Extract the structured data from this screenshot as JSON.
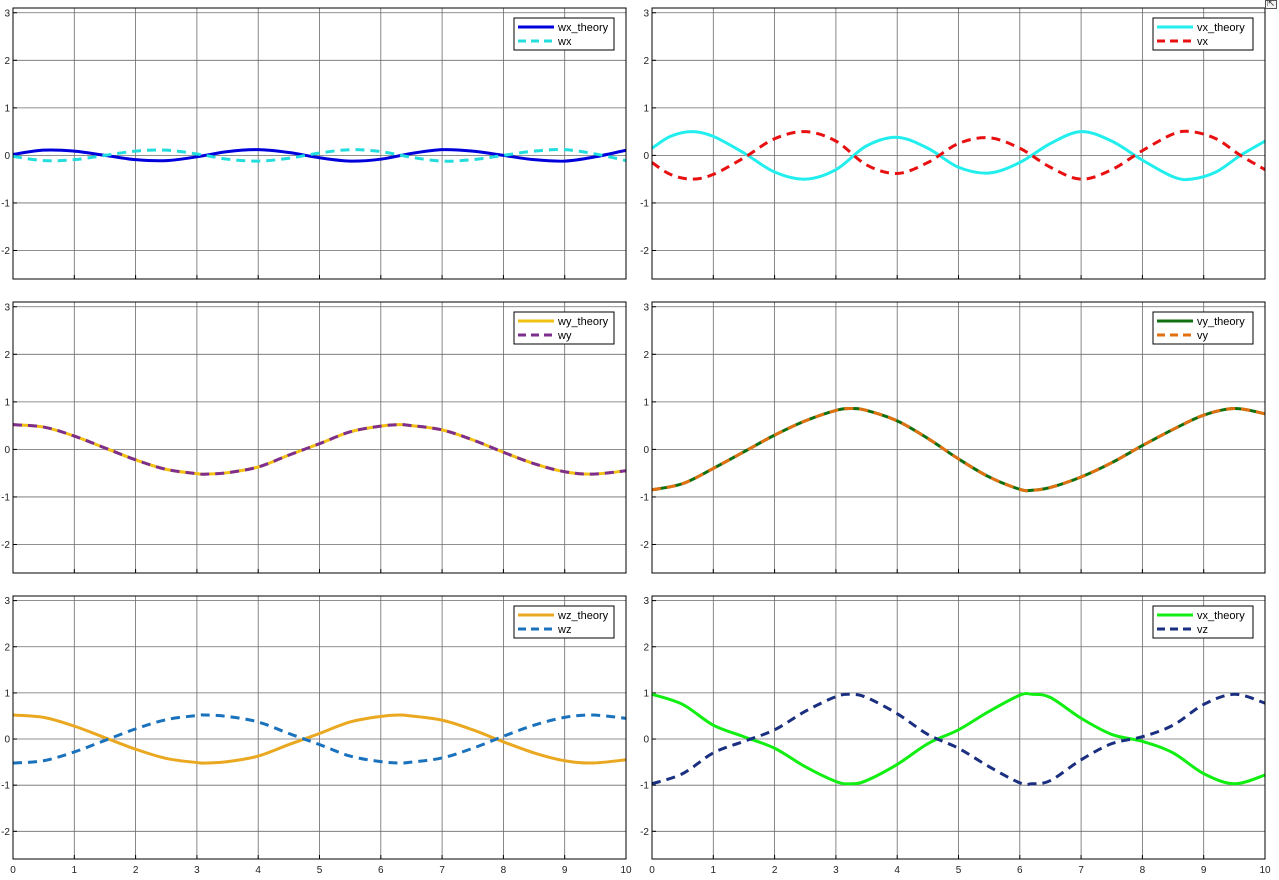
{
  "chart_data": [
    {
      "type": "line",
      "xlim": [
        0,
        10
      ],
      "ylim": [
        -2.6,
        3.1
      ],
      "xticks": [
        "0",
        "1",
        "2",
        "3",
        "4",
        "5",
        "6",
        "7",
        "8",
        "9",
        "10"
      ],
      "yticks": [
        "-2",
        "-1",
        "0",
        "1",
        "2",
        "3"
      ],
      "xtick_labels_shown": false,
      "grid": true,
      "legend_position": "top-right",
      "series": [
        {
          "name": "wx_theory",
          "color": "#0000dd",
          "style": "solid",
          "x": [
            0,
            0.5,
            1,
            1.5,
            2,
            2.5,
            3,
            3.5,
            4,
            4.5,
            5,
            5.5,
            6,
            6.5,
            7,
            7.5,
            8,
            8.5,
            9,
            9.5,
            10
          ],
          "y": [
            0.02,
            0.11,
            0.09,
            0.0,
            -0.09,
            -0.11,
            -0.03,
            0.08,
            0.12,
            0.06,
            -0.05,
            -0.12,
            -0.08,
            0.04,
            0.12,
            0.09,
            0.0,
            -0.09,
            -0.12,
            -0.03,
            0.11
          ]
        },
        {
          "name": "wx",
          "color": "#22dddd",
          "style": "dashed",
          "x": [
            0,
            0.5,
            1,
            1.5,
            2,
            2.5,
            3,
            3.5,
            4,
            4.5,
            5,
            5.5,
            6,
            6.5,
            7,
            7.5,
            8,
            8.5,
            9,
            9.5,
            10
          ],
          "y": [
            -0.02,
            -0.11,
            -0.09,
            0.0,
            0.09,
            0.11,
            0.03,
            -0.08,
            -0.12,
            -0.06,
            0.05,
            0.12,
            0.08,
            -0.04,
            -0.12,
            -0.09,
            0.0,
            0.09,
            0.12,
            0.03,
            -0.11
          ]
        }
      ]
    },
    {
      "type": "line",
      "xlim": [
        0,
        10
      ],
      "ylim": [
        -2.6,
        3.1
      ],
      "xticks": [
        "0",
        "1",
        "2",
        "3",
        "4",
        "5",
        "6",
        "7",
        "8",
        "9",
        "10"
      ],
      "yticks": [
        "-2",
        "-1",
        "0",
        "1",
        "2",
        "3"
      ],
      "xtick_labels_shown": false,
      "grid": true,
      "legend_position": "top-right",
      "series": [
        {
          "name": "vx_theory",
          "color": "#22eeee",
          "style": "solid",
          "x": [
            0,
            0.3,
            0.65,
            1,
            1.5,
            2,
            2.5,
            3,
            3.5,
            4,
            4.5,
            5,
            5.5,
            6,
            6.5,
            7,
            7.5,
            8,
            8.5,
            8.8,
            9.2,
            9.6,
            10
          ],
          "y": [
            0.15,
            0.4,
            0.5,
            0.4,
            0.05,
            -0.35,
            -0.5,
            -0.3,
            0.2,
            0.38,
            0.15,
            -0.25,
            -0.37,
            -0.15,
            0.25,
            0.5,
            0.3,
            -0.1,
            -0.45,
            -0.5,
            -0.35,
            0.0,
            0.3
          ]
        },
        {
          "name": "vx",
          "color": "#e81010",
          "style": "dashed",
          "x": [
            0,
            0.3,
            0.65,
            1,
            1.5,
            2,
            2.5,
            3,
            3.5,
            4,
            4.5,
            5,
            5.5,
            6,
            6.5,
            7,
            7.5,
            8,
            8.5,
            8.8,
            9.2,
            9.6,
            10
          ],
          "y": [
            -0.15,
            -0.4,
            -0.5,
            -0.4,
            -0.05,
            0.35,
            0.5,
            0.3,
            -0.2,
            -0.38,
            -0.15,
            0.25,
            0.37,
            0.15,
            -0.25,
            -0.5,
            -0.3,
            0.1,
            0.45,
            0.5,
            0.35,
            0.0,
            -0.3
          ]
        }
      ]
    },
    {
      "type": "line",
      "xlim": [
        0,
        10
      ],
      "ylim": [
        -2.6,
        3.1
      ],
      "xticks": [
        "0",
        "1",
        "2",
        "3",
        "4",
        "5",
        "6",
        "7",
        "8",
        "9",
        "10"
      ],
      "yticks": [
        "-2",
        "-1",
        "0",
        "1",
        "2",
        "3"
      ],
      "xtick_labels_shown": false,
      "grid": true,
      "legend_position": "top-right",
      "series": [
        {
          "name": "wy_theory",
          "color": "#f2c010",
          "style": "solid",
          "x": [
            0,
            0.5,
            1,
            1.5,
            2,
            2.5,
            3,
            3.15,
            3.5,
            4,
            4.5,
            5,
            5.5,
            6,
            6.3,
            6.5,
            7,
            7.5,
            8,
            8.5,
            9,
            9.45,
            10
          ],
          "y": [
            0.52,
            0.47,
            0.28,
            0.03,
            -0.22,
            -0.42,
            -0.51,
            -0.52,
            -0.49,
            -0.37,
            -0.12,
            0.12,
            0.37,
            0.49,
            0.52,
            0.5,
            0.41,
            0.2,
            -0.06,
            -0.3,
            -0.47,
            -0.52,
            -0.45
          ]
        },
        {
          "name": "wy",
          "color": "#7e2f8e",
          "style": "dashed",
          "x": [
            0,
            0.5,
            1,
            1.5,
            2,
            2.5,
            3,
            3.15,
            3.5,
            4,
            4.5,
            5,
            5.5,
            6,
            6.3,
            6.5,
            7,
            7.5,
            8,
            8.5,
            9,
            9.45,
            10
          ],
          "y": [
            0.52,
            0.47,
            0.28,
            0.03,
            -0.22,
            -0.42,
            -0.51,
            -0.52,
            -0.49,
            -0.37,
            -0.12,
            0.12,
            0.37,
            0.49,
            0.52,
            0.5,
            0.41,
            0.2,
            -0.06,
            -0.3,
            -0.47,
            -0.52,
            -0.45
          ]
        }
      ]
    },
    {
      "type": "line",
      "xlim": [
        0,
        10
      ],
      "ylim": [
        -2.6,
        3.1
      ],
      "xticks": [
        "0",
        "1",
        "2",
        "3",
        "4",
        "5",
        "6",
        "7",
        "8",
        "9",
        "10"
      ],
      "yticks": [
        "-2",
        "-1",
        "0",
        "1",
        "2",
        "3"
      ],
      "xtick_labels_shown": false,
      "grid": true,
      "legend_position": "top-right",
      "series": [
        {
          "name": "vy_theory",
          "color": "#107010",
          "style": "solid",
          "x": [
            0,
            0.5,
            1,
            1.5,
            2,
            2.5,
            3,
            3.25,
            3.5,
            4,
            4.5,
            5,
            5.5,
            6,
            6.2,
            6.5,
            7,
            7.5,
            8,
            8.5,
            9,
            9.5,
            10
          ],
          "y": [
            -0.85,
            -0.72,
            -0.4,
            -0.05,
            0.3,
            0.6,
            0.82,
            0.86,
            0.82,
            0.6,
            0.23,
            -0.2,
            -0.58,
            -0.84,
            -0.86,
            -0.8,
            -0.58,
            -0.28,
            0.08,
            0.42,
            0.72,
            0.86,
            0.75
          ]
        },
        {
          "name": "vy",
          "color": "#e07010",
          "style": "dashed",
          "x": [
            0,
            0.5,
            1,
            1.5,
            2,
            2.5,
            3,
            3.25,
            3.5,
            4,
            4.5,
            5,
            5.5,
            6,
            6.2,
            6.5,
            7,
            7.5,
            8,
            8.5,
            9,
            9.5,
            10
          ],
          "y": [
            -0.85,
            -0.72,
            -0.4,
            -0.05,
            0.3,
            0.6,
            0.82,
            0.86,
            0.82,
            0.6,
            0.23,
            -0.2,
            -0.58,
            -0.84,
            -0.86,
            -0.8,
            -0.58,
            -0.28,
            0.08,
            0.42,
            0.72,
            0.86,
            0.75
          ]
        }
      ]
    },
    {
      "type": "line",
      "xlim": [
        0,
        10
      ],
      "ylim": [
        -2.6,
        3.1
      ],
      "xticks": [
        "0",
        "1",
        "2",
        "3",
        "4",
        "5",
        "6",
        "7",
        "8",
        "9",
        "10"
      ],
      "yticks": [
        "-2",
        "-1",
        "0",
        "1",
        "2",
        "3"
      ],
      "xtick_labels_shown": true,
      "grid": true,
      "legend_position": "top-right",
      "series": [
        {
          "name": "wz_theory",
          "color": "#eaa820",
          "style": "solid",
          "x": [
            0,
            0.5,
            1,
            1.5,
            2,
            2.5,
            3,
            3.15,
            3.5,
            4,
            4.5,
            5,
            5.5,
            6,
            6.3,
            6.5,
            7,
            7.5,
            8,
            8.5,
            9,
            9.45,
            10
          ],
          "y": [
            0.52,
            0.47,
            0.28,
            0.03,
            -0.22,
            -0.42,
            -0.51,
            -0.52,
            -0.49,
            -0.37,
            -0.12,
            0.12,
            0.37,
            0.49,
            0.52,
            0.5,
            0.41,
            0.2,
            -0.06,
            -0.3,
            -0.47,
            -0.52,
            -0.45
          ]
        },
        {
          "name": "wz",
          "color": "#1a72bd",
          "style": "dashed",
          "x": [
            0,
            0.5,
            1,
            1.5,
            2,
            2.5,
            3,
            3.15,
            3.5,
            4,
            4.5,
            5,
            5.5,
            6,
            6.3,
            6.5,
            7,
            7.5,
            8,
            8.5,
            9,
            9.45,
            10
          ],
          "y": [
            -0.52,
            -0.47,
            -0.28,
            -0.03,
            0.22,
            0.42,
            0.51,
            0.52,
            0.49,
            0.37,
            0.12,
            -0.12,
            -0.37,
            -0.49,
            -0.52,
            -0.5,
            -0.41,
            -0.2,
            0.06,
            0.3,
            0.47,
            0.52,
            0.45
          ]
        }
      ]
    },
    {
      "type": "line",
      "xlim": [
        0,
        10
      ],
      "ylim": [
        -2.6,
        3.1
      ],
      "xticks": [
        "0",
        "1",
        "2",
        "3",
        "4",
        "5",
        "6",
        "7",
        "8",
        "9",
        "10"
      ],
      "yticks": [
        "-2",
        "-1",
        "0",
        "1",
        "2",
        "3"
      ],
      "xtick_labels_shown": true,
      "grid": true,
      "legend_position": "top-right",
      "series": [
        {
          "name": "vx_theory",
          "color": "#11ee11",
          "style": "solid",
          "x": [
            0,
            0.5,
            1,
            1.5,
            2,
            2.5,
            3,
            3.25,
            3.5,
            4,
            4.5,
            5,
            5.5,
            6,
            6.2,
            6.5,
            7,
            7.5,
            8,
            8.5,
            9,
            9.5,
            10
          ],
          "y": [
            0.97,
            0.75,
            0.3,
            0.05,
            -0.2,
            -0.6,
            -0.92,
            -0.97,
            -0.9,
            -0.55,
            -0.1,
            0.2,
            0.6,
            0.95,
            0.97,
            0.9,
            0.45,
            0.1,
            -0.05,
            -0.3,
            -0.75,
            -0.97,
            -0.78
          ]
        },
        {
          "name": "vz",
          "color": "#1a2f80",
          "style": "dashed",
          "x": [
            0,
            0.5,
            1,
            1.5,
            2,
            2.5,
            3,
            3.25,
            3.5,
            4,
            4.5,
            5,
            5.5,
            6,
            6.2,
            6.5,
            7,
            7.5,
            8,
            8.5,
            9,
            9.5,
            10
          ],
          "y": [
            -0.97,
            -0.75,
            -0.3,
            -0.05,
            0.2,
            0.6,
            0.92,
            0.97,
            0.9,
            0.55,
            0.1,
            -0.2,
            -0.6,
            -0.95,
            -0.97,
            -0.9,
            -0.45,
            -0.1,
            0.05,
            0.3,
            0.75,
            0.97,
            0.78
          ]
        }
      ]
    }
  ]
}
